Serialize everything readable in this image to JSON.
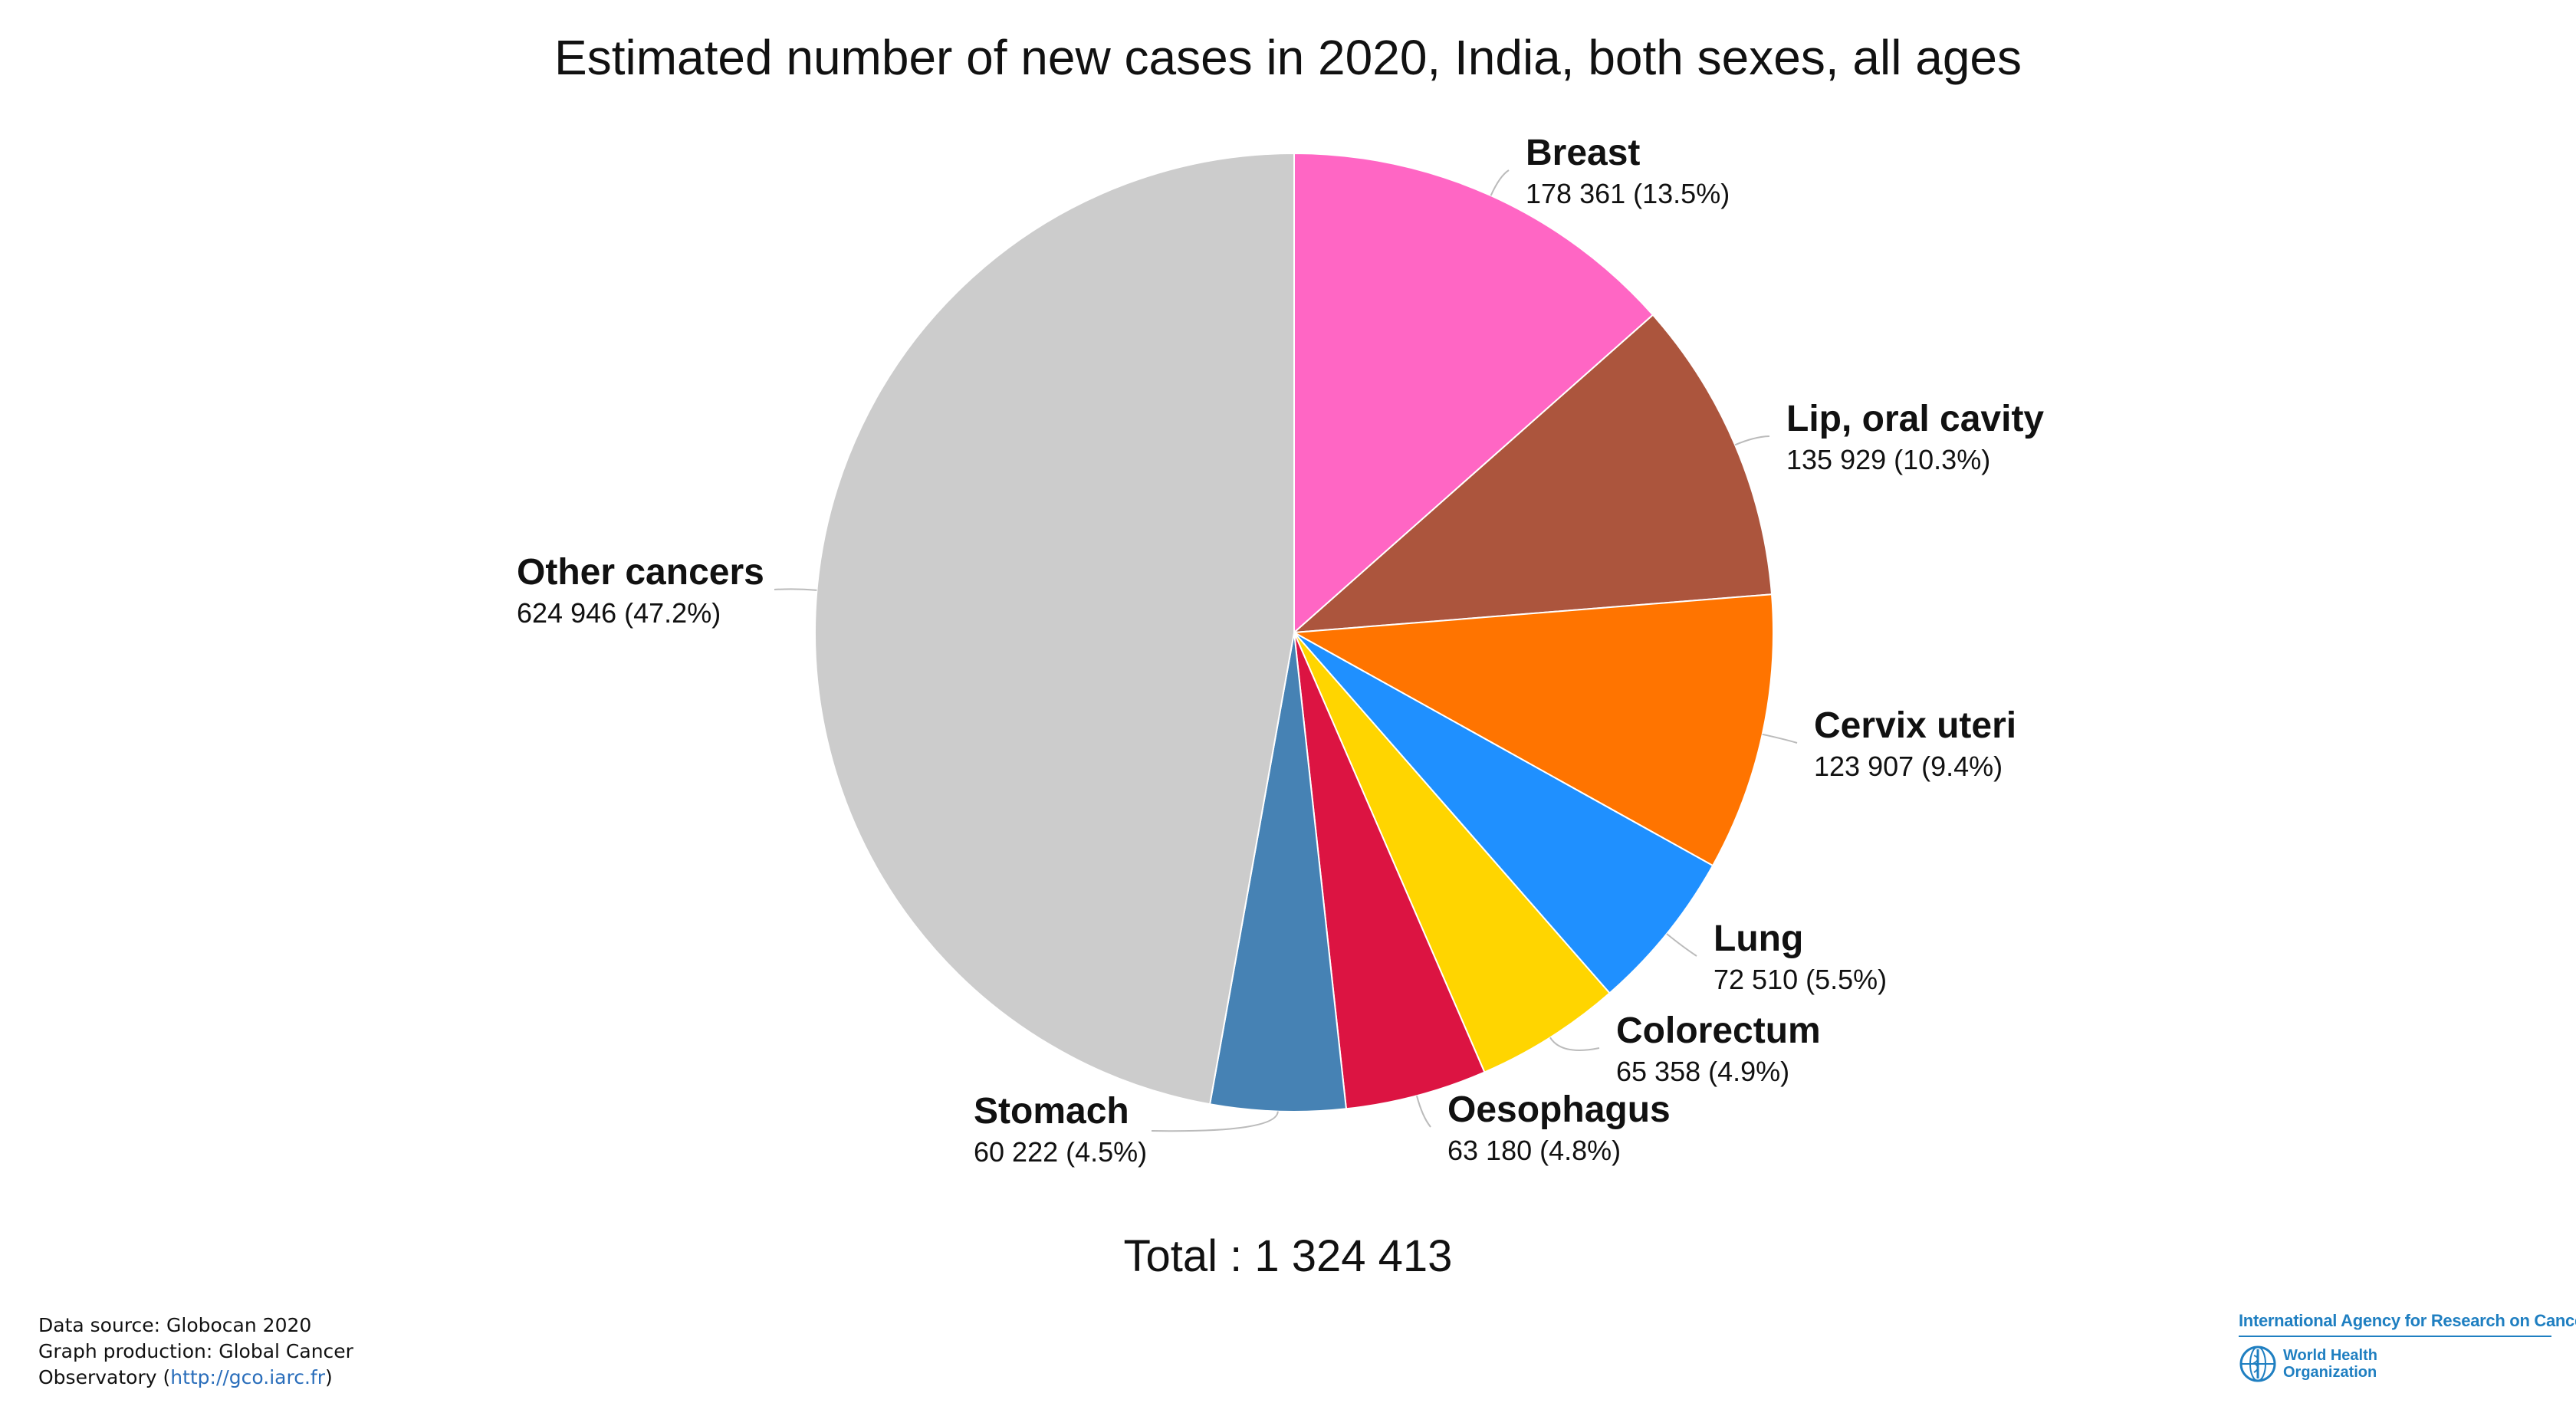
{
  "chart_data": {
    "type": "pie",
    "title": "Estimated number of new cases in 2020, India, both sexes, all ages",
    "total_label": "Total : 1 324 413",
    "slices": [
      {
        "name": "Breast",
        "value": 178361,
        "value_label": "178 361 (13.5%)",
        "color": "#ff66c4"
      },
      {
        "name": "Lip, oral cavity",
        "value": 135929,
        "value_label": "135 929 (10.3%)",
        "color": "#ac553d"
      },
      {
        "name": "Cervix uteri",
        "value": 123907,
        "value_label": "123 907 (9.4%)",
        "color": "#ff7400"
      },
      {
        "name": "Lung",
        "value": 72510,
        "value_label": "72 510 (5.5%)",
        "color": "#1f90ff"
      },
      {
        "name": "Colorectum",
        "value": 65358,
        "value_label": "65 358 (4.9%)",
        "color": "#ffd500"
      },
      {
        "name": "Oesophagus",
        "value": 63180,
        "value_label": "63 180 (4.8%)",
        "color": "#dc1442"
      },
      {
        "name": "Stomach",
        "value": 60222,
        "value_label": "60 222 (4.5%)",
        "color": "#4682b4"
      },
      {
        "name": "Other cancers",
        "value": 624946,
        "value_label": "624 946 (47.2%)",
        "color": "#cccccc"
      }
    ]
  },
  "footer": {
    "line1": "Data source: Globocan 2020",
    "line2": "Graph production: Global Cancer",
    "line3_prefix": "Observatory (",
    "line3_link": "http://gco.iarc.fr",
    "line3_suffix": ")"
  },
  "logos": {
    "iarc": "International Agency for Research on Cancer",
    "who": "World Health Organization"
  }
}
